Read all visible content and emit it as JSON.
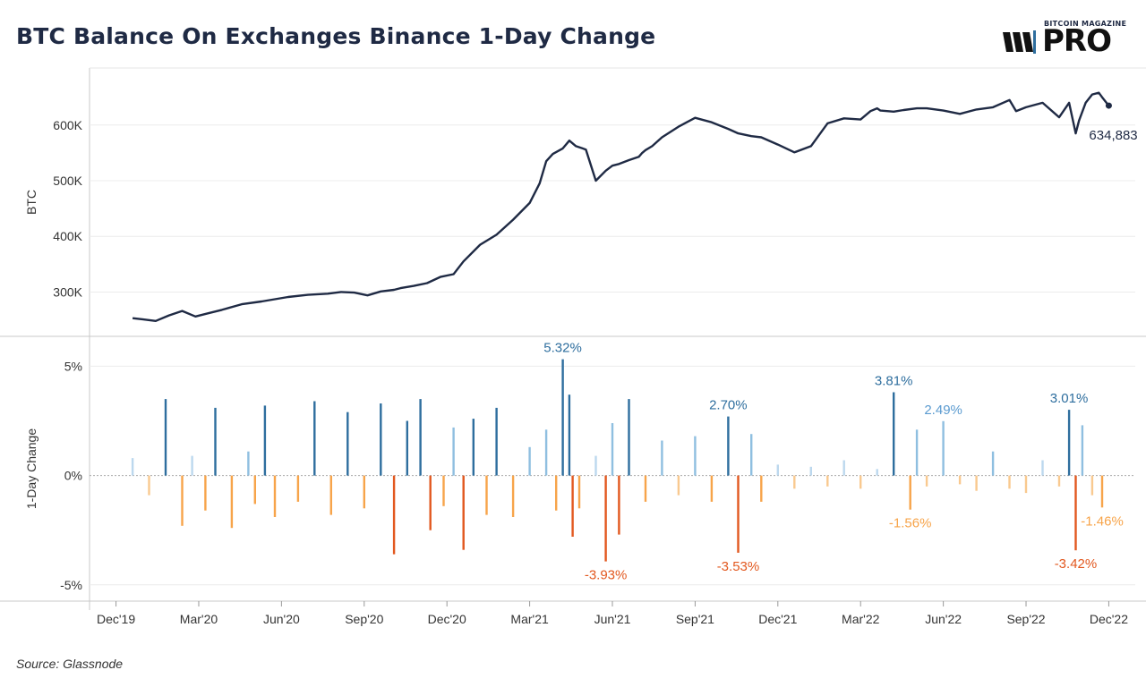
{
  "header": {
    "title": "BTC Balance On Exchanges Binance 1-Day Change",
    "logo_small": "BITCOIN MAGAZINE",
    "logo_big": "PRO"
  },
  "footer": {
    "source": "Source: Glassnode"
  },
  "chart_data": [
    {
      "type": "line",
      "title": "BTC Balance On Exchanges Binance 1-Day Change",
      "ylabel": "BTC",
      "ylim": [
        230000,
        680000
      ],
      "yticks": [
        300000,
        400000,
        500000,
        600000
      ],
      "ytick_labels": [
        "300K",
        "400K",
        "500K",
        "600K"
      ],
      "color": "#1f2a44",
      "last_label": "634,883",
      "x": [
        2020.05,
        2020.08,
        2020.12,
        2020.16,
        2020.18,
        2020.2,
        2020.24,
        2020.28,
        2020.32,
        2020.38,
        2020.44,
        2020.48,
        2020.52,
        2020.58,
        2020.64,
        2020.68,
        2020.72,
        2020.76,
        2020.8,
        2020.84,
        2020.86,
        2020.9,
        2020.94,
        2020.98,
        2021.02,
        2021.05,
        2021.1,
        2021.15,
        2021.2,
        2021.25,
        2021.28,
        2021.3,
        2021.32,
        2021.35,
        2021.37,
        2021.39,
        2021.41,
        2021.42,
        2021.45,
        2021.48,
        2021.5,
        2021.52,
        2021.55,
        2021.58,
        2021.59,
        2021.6,
        2021.62,
        2021.65,
        2021.7,
        2021.75,
        2021.8,
        2021.85,
        2021.88,
        2021.92,
        2021.95,
        2022.0,
        2022.05,
        2022.1,
        2022.15,
        2022.2,
        2022.25,
        2022.28,
        2022.3,
        2022.31,
        2022.35,
        2022.38,
        2022.42,
        2022.45,
        2022.5,
        2022.55,
        2022.6,
        2022.65,
        2022.7,
        2022.72,
        2022.75,
        2022.8,
        2022.85,
        2022.88,
        2022.9,
        2022.91,
        2022.93,
        2022.95,
        2022.97,
        2022.98,
        2023.0
      ],
      "y": [
        253000,
        251000,
        248000,
        258000,
        262000,
        266000,
        256000,
        262000,
        268000,
        278000,
        283000,
        287000,
        291000,
        295000,
        297000,
        300000,
        299000,
        294000,
        301000,
        304000,
        307000,
        311000,
        316000,
        327000,
        332000,
        355000,
        385000,
        403000,
        430000,
        460000,
        495000,
        535000,
        548000,
        558000,
        572000,
        562000,
        558000,
        556000,
        500000,
        518000,
        527000,
        530000,
        537000,
        543000,
        550000,
        555000,
        562000,
        578000,
        597000,
        613000,
        605000,
        593000,
        585000,
        580000,
        578000,
        565000,
        551000,
        562000,
        603000,
        612000,
        610000,
        625000,
        630000,
        626000,
        624000,
        627000,
        630000,
        630000,
        626000,
        620000,
        628000,
        632000,
        645000,
        625000,
        632000,
        640000,
        614000,
        640000,
        585000,
        608000,
        640000,
        655000,
        658000,
        650000,
        634883
      ]
    },
    {
      "type": "bar",
      "title": "1-Day Change",
      "ylabel": "1-Day Change",
      "ylim": [
        -5.5,
        6.0
      ],
      "yticks": [
        -5,
        0,
        5
      ],
      "ytick_labels": [
        "-5%",
        "0%",
        "5%"
      ],
      "xticks": [
        2020.0,
        2020.25,
        2020.5,
        2020.75,
        2021.0,
        2021.25,
        2021.5,
        2021.75,
        2022.0,
        2022.25,
        2022.5,
        2022.75,
        2023.0
      ],
      "xtick_labels": [
        "Dec'19",
        "Mar'20",
        "Jun'20",
        "Sep'20",
        "Dec'20",
        "Mar'21",
        "Jun'21",
        "Sep'21",
        "Dec'21",
        "Mar'22",
        "Jun'22",
        "Sep'22",
        "Dec'22"
      ],
      "colors": {
        "pos_strong": "#2e6e9e",
        "pos": "#8fbfe0",
        "pos_light": "#bcd8ee",
        "neg_strong": "#e2581f",
        "neg": "#f7a44a",
        "neg_light": "#f9c98f"
      },
      "x": [
        2020.05,
        2020.1,
        2020.15,
        2020.2,
        2020.23,
        2020.27,
        2020.3,
        2020.35,
        2020.4,
        2020.42,
        2020.45,
        2020.48,
        2020.55,
        2020.6,
        2020.65,
        2020.7,
        2020.75,
        2020.8,
        2020.84,
        2020.88,
        2020.92,
        2020.95,
        2020.99,
        2021.02,
        2021.05,
        2021.08,
        2021.12,
        2021.15,
        2021.2,
        2021.25,
        2021.3,
        2021.33,
        2021.35,
        2021.37,
        2021.38,
        2021.4,
        2021.45,
        2021.48,
        2021.5,
        2021.52,
        2021.55,
        2021.6,
        2021.65,
        2021.7,
        2021.75,
        2021.8,
        2021.85,
        2021.88,
        2021.92,
        2021.95,
        2022.0,
        2022.05,
        2022.1,
        2022.15,
        2022.2,
        2022.25,
        2022.3,
        2022.35,
        2022.4,
        2022.42,
        2022.45,
        2022.5,
        2022.55,
        2022.6,
        2022.65,
        2022.7,
        2022.75,
        2022.8,
        2022.85,
        2022.88,
        2022.9,
        2022.92,
        2022.95,
        2022.98
      ],
      "values": [
        0.8,
        -0.9,
        3.5,
        -2.3,
        0.9,
        -1.6,
        3.1,
        -2.4,
        1.1,
        -1.3,
        3.2,
        -1.9,
        -1.2,
        3.4,
        -1.8,
        2.9,
        -1.5,
        3.3,
        -3.6,
        2.5,
        3.5,
        -2.5,
        -1.4,
        2.2,
        -3.4,
        2.6,
        -1.8,
        3.1,
        -1.9,
        1.3,
        2.1,
        -1.6,
        5.32,
        3.7,
        -2.8,
        -1.5,
        0.9,
        -3.93,
        2.4,
        -2.7,
        3.5,
        -1.2,
        1.6,
        -0.9,
        1.8,
        -1.2,
        2.7,
        -3.53,
        1.9,
        -1.2,
        0.5,
        -0.6,
        0.4,
        -0.5,
        0.7,
        -0.6,
        0.3,
        3.81,
        -1.56,
        2.1,
        -0.5,
        2.49,
        -0.4,
        -0.7,
        1.1,
        -0.6,
        -0.8,
        0.7,
        -0.5,
        3.01,
        -3.42,
        2.3,
        -0.9,
        -1.46
      ],
      "annotations": [
        {
          "label": "5.32%",
          "x": 2021.35,
          "value": 5.32,
          "kind": "pos"
        },
        {
          "label": "2.70%",
          "x": 2021.85,
          "value": 2.7,
          "kind": "pos"
        },
        {
          "label": "3.81%",
          "x": 2022.35,
          "value": 3.81,
          "kind": "pos"
        },
        {
          "label": "2.49%",
          "x": 2022.5,
          "value": 2.49,
          "kind": "pos"
        },
        {
          "label": "3.01%",
          "x": 2022.88,
          "value": 3.01,
          "kind": "pos"
        },
        {
          "label": "-3.93%",
          "x": 2021.48,
          "value": -3.93,
          "kind": "neg"
        },
        {
          "label": "-3.53%",
          "x": 2021.88,
          "value": -3.53,
          "kind": "neg"
        },
        {
          "label": "-1.56%",
          "x": 2022.4,
          "value": -1.56,
          "kind": "neg"
        },
        {
          "label": "-3.42%",
          "x": 2022.9,
          "value": -3.42,
          "kind": "neg"
        },
        {
          "label": "-1.46%",
          "x": 2022.98,
          "value": -1.46,
          "kind": "neg"
        }
      ]
    }
  ]
}
